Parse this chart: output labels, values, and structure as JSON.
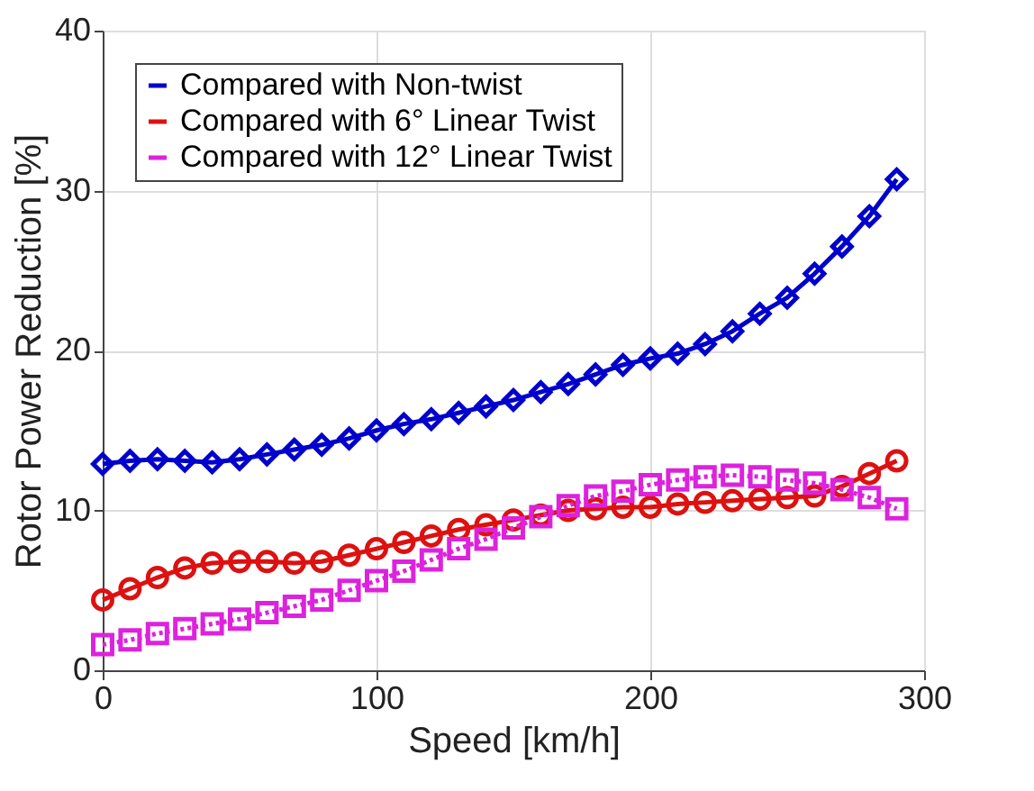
{
  "chart_data": {
    "type": "line",
    "xlabel": "Speed [km/h]",
    "ylabel": "Rotor Power Reduction [%]",
    "x": [
      0,
      10,
      20,
      30,
      40,
      50,
      60,
      70,
      80,
      90,
      100,
      110,
      120,
      130,
      140,
      150,
      160,
      170,
      180,
      190,
      200,
      210,
      220,
      230,
      240,
      250,
      260,
      270,
      280,
      290
    ],
    "series": [
      {
        "name": "Compared with Non-twist",
        "color": "#0000cc",
        "marker": "diamond",
        "line_style": "solid",
        "values": [
          12.9,
          13.1,
          13.2,
          13.1,
          13.0,
          13.2,
          13.5,
          13.8,
          14.1,
          14.5,
          15.0,
          15.4,
          15.7,
          16.1,
          16.5,
          16.9,
          17.4,
          17.9,
          18.5,
          19.1,
          19.5,
          19.8,
          20.4,
          21.2,
          22.3,
          23.3,
          24.8,
          26.5,
          28.4,
          30.7
        ]
      },
      {
        "name": "Compared with 6° Linear Twist",
        "color": "#dd1111",
        "marker": "circle",
        "line_style": "solid",
        "values": [
          4.4,
          5.1,
          5.8,
          6.4,
          6.7,
          6.8,
          6.8,
          6.7,
          6.8,
          7.2,
          7.6,
          8.0,
          8.4,
          8.8,
          9.1,
          9.4,
          9.7,
          10.0,
          10.1,
          10.2,
          10.2,
          10.4,
          10.5,
          10.6,
          10.7,
          10.8,
          10.9,
          11.5,
          12.3,
          13.1
        ]
      },
      {
        "name": "Compared with 12° Linear Twist",
        "color": "#dd22dd",
        "marker": "square",
        "line_style": "dotted",
        "values": [
          1.6,
          1.9,
          2.3,
          2.6,
          2.9,
          3.2,
          3.6,
          4.0,
          4.4,
          5.0,
          5.6,
          6.2,
          6.9,
          7.6,
          8.2,
          8.9,
          9.6,
          10.3,
          10.9,
          11.2,
          11.6,
          11.9,
          12.1,
          12.2,
          12.1,
          11.9,
          11.7,
          11.3,
          10.8,
          10.1
        ]
      }
    ],
    "xlim": [
      0,
      300
    ],
    "xticks": [
      0,
      100,
      200,
      300
    ],
    "ylim": [
      0,
      40
    ],
    "yticks": [
      0,
      10,
      20,
      30,
      40
    ],
    "grid": true,
    "legend": "top left"
  }
}
